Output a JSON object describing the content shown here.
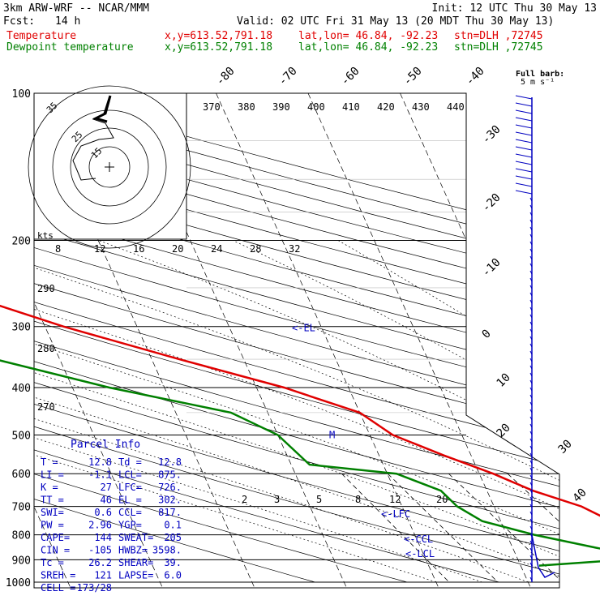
{
  "header": {
    "model": "3km ARW-WRF -- NCAR/MMM",
    "init": "Init: 12 UTC Thu 30 May 13",
    "fcst_label": "Fcst:",
    "fcst_value": "14 h",
    "valid": "Valid: 02 UTC Fri 31 May 13 (20 MDT Thu 30 May 13)",
    "temp_label": "Temperature",
    "dew_label": "Dewpoint temperature",
    "xy": "x,y=613.52,791.18",
    "latlon": "lat,lon= 46.84, -92.23",
    "stn": "stn=DLH ,72745",
    "full_barb": "Full barb:",
    "full_barb_units": "5 m s⁻¹"
  },
  "colors": {
    "temperature": "#e00000",
    "dewpoint": "#008000",
    "wind": "#0000c0",
    "grid": "#000000"
  },
  "chart_data": {
    "type": "line",
    "title": "",
    "pressure_levels": [
      100,
      200,
      300,
      400,
      500,
      600,
      700,
      800,
      900,
      1000
    ],
    "isotherm_labels": [
      -80,
      -70,
      -60,
      -50,
      -40,
      -30,
      -20,
      -10,
      0,
      10,
      20,
      30,
      40
    ],
    "theta_labels": [
      370,
      380,
      390,
      400,
      410,
      420,
      430,
      440,
      290,
      280,
      270
    ],
    "mixing_ratio_labels": [
      2,
      3,
      5,
      8,
      12,
      20
    ],
    "series": [
      {
        "name": "Temperature",
        "points": [
          [
            100,
            -63.5
          ],
          [
            130,
            -60.3
          ],
          [
            165,
            -57
          ],
          [
            185,
            -58
          ],
          [
            200,
            -57.5
          ],
          [
            250,
            -49
          ],
          [
            300,
            -38
          ],
          [
            350,
            -27
          ],
          [
            400,
            -17
          ],
          [
            450,
            -10
          ],
          [
            500,
            -7.5
          ],
          [
            550,
            -3
          ],
          [
            600,
            1.5
          ],
          [
            650,
            5
          ],
          [
            700,
            9.5
          ],
          [
            750,
            12
          ],
          [
            800,
            13.5
          ],
          [
            850,
            13.8
          ],
          [
            880,
            14.5
          ],
          [
            900,
            17
          ],
          [
            925,
            11.5
          ]
        ]
      },
      {
        "name": "Dewpoint temperature",
        "points": [
          [
            100,
            -77
          ],
          [
            130,
            -79
          ],
          [
            165,
            -82
          ],
          [
            185,
            -82.5
          ],
          [
            200,
            -82.5
          ],
          [
            225,
            -82
          ],
          [
            250,
            -74
          ],
          [
            300,
            -61
          ],
          [
            350,
            -47
          ],
          [
            400,
            -36
          ],
          [
            450,
            -24
          ],
          [
            500,
            -20
          ],
          [
            575,
            -18
          ],
          [
            600,
            -9
          ],
          [
            650,
            -5
          ],
          [
            700,
            -4
          ],
          [
            750,
            -2
          ],
          [
            800,
            3
          ],
          [
            850,
            9
          ],
          [
            880,
            12.8
          ],
          [
            900,
            11.5
          ],
          [
            925,
            2
          ]
        ]
      }
    ],
    "levels_annotated": [
      {
        "label": "EL",
        "p": 302
      },
      {
        "label": "M",
        "p": 500
      },
      {
        "label": "LFC",
        "p": 726
      },
      {
        "label": "CCL",
        "p": 817
      },
      {
        "label": "LCL",
        "p": 875
      }
    ],
    "hodograph": {
      "units_label": "kts",
      "ring_labels": [
        15,
        25,
        35
      ],
      "speed_axis_labels": [
        8,
        12,
        16,
        20,
        24,
        28,
        32
      ]
    }
  },
  "parcel_info": {
    "title": "Parcel Info",
    "rows": [
      [
        "T  =",
        "12.8",
        "Td =",
        "12.8"
      ],
      [
        "LI =",
        "-1.1",
        "LCL=",
        "875."
      ],
      [
        "K  =",
        "27",
        "LFC=",
        "726."
      ],
      [
        "TT =",
        "46",
        "EL =",
        "302."
      ],
      [
        "SWI=",
        "0.6",
        "CCL=",
        "817."
      ],
      [
        "PW =",
        "2.96",
        "YGP=",
        "0.1"
      ],
      [
        "CAPE=",
        "144",
        "SWEAT=",
        "205"
      ],
      [
        "CIN =",
        "-105",
        "HWBZ=",
        "3598."
      ],
      [
        "Tc =",
        "26.2",
        "SHEAR=",
        "39."
      ],
      [
        "SREH =",
        "121",
        "LAPSE=",
        "6.0"
      ],
      [
        "CELL =",
        "173/28",
        "",
        ""
      ]
    ]
  }
}
